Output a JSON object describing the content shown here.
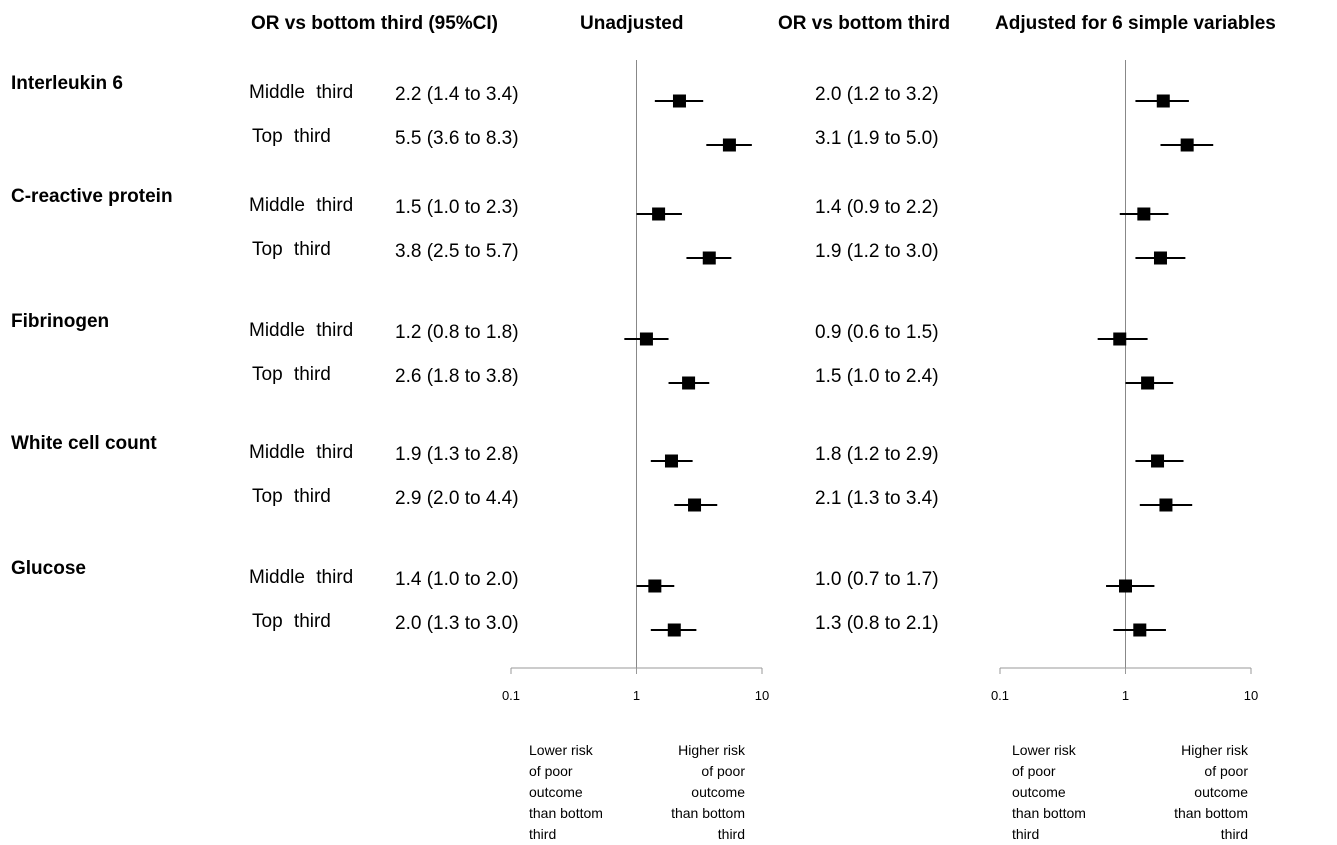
{
  "headers": {
    "or_unadjusted": "OR vs bottom third (95%CI)",
    "unadjusted": "Unadjusted",
    "or_adjusted": "OR vs bottom third",
    "adjusted": "Adjusted for 6 simple variables"
  },
  "axis_notes": {
    "lower": "Lower risk\nof poor\noutcome\nthan bottom\nthird",
    "higher": "Higher risk\nof poor\noutcome\nthan bottom\nthird"
  },
  "colors": {
    "marker": "#000000",
    "line": "#000000",
    "axis": "#999999",
    "reference": "#888888"
  },
  "chart_data": [
    {
      "type": "scatter",
      "title": "Unadjusted",
      "scale": "log",
      "xlim": [
        0.1,
        10
      ],
      "x_ticks": [
        "0.1",
        "1",
        "10"
      ],
      "reference_line": 1,
      "grid": false,
      "groups": [
        {
          "marker": "Interleukin 6",
          "rows": [
            {
              "level": "Middle third",
              "or": 2.2,
              "lo": 1.4,
              "hi": 3.4,
              "label": "2.2 (1.4 to 3.4)"
            },
            {
              "level": "Top third",
              "or": 5.5,
              "lo": 3.6,
              "hi": 8.3,
              "label": "5.5 (3.6 to 8.3)"
            }
          ]
        },
        {
          "marker": "C-reactive protein",
          "rows": [
            {
              "level": "Middle third",
              "or": 1.5,
              "lo": 1.0,
              "hi": 2.3,
              "label": "1.5 (1.0 to 2.3)"
            },
            {
              "level": "Top third",
              "or": 3.8,
              "lo": 2.5,
              "hi": 5.7,
              "label": "3.8 (2.5 to 5.7)"
            }
          ]
        },
        {
          "marker": "Fibrinogen",
          "rows": [
            {
              "level": "Middle third",
              "or": 1.2,
              "lo": 0.8,
              "hi": 1.8,
              "label": "1.2 (0.8 to 1.8)"
            },
            {
              "level": "Top third",
              "or": 2.6,
              "lo": 1.8,
              "hi": 3.8,
              "label": "2.6 (1.8 to 3.8)"
            }
          ]
        },
        {
          "marker": "White cell count",
          "rows": [
            {
              "level": "Middle third",
              "or": 1.9,
              "lo": 1.3,
              "hi": 2.8,
              "label": "1.9 (1.3 to 2.8)"
            },
            {
              "level": "Top third",
              "or": 2.9,
              "lo": 2.0,
              "hi": 4.4,
              "label": "2.9 (2.0 to 4.4)"
            }
          ]
        },
        {
          "marker": "Glucose",
          "rows": [
            {
              "level": "Middle third",
              "or": 1.4,
              "lo": 1.0,
              "hi": 2.0,
              "label": "1.4 (1.0 to 2.0)"
            },
            {
              "level": "Top third",
              "or": 2.0,
              "lo": 1.3,
              "hi": 3.0,
              "label": "2.0 (1.3 to 3.0)"
            }
          ]
        }
      ]
    },
    {
      "type": "scatter",
      "title": "Adjusted for 6 simple variables",
      "scale": "log",
      "xlim": [
        0.1,
        10
      ],
      "x_ticks": [
        "0.1",
        "1",
        "10"
      ],
      "reference_line": 1,
      "grid": false,
      "groups": [
        {
          "marker": "Interleukin 6",
          "rows": [
            {
              "level": "Middle third",
              "or": 2.0,
              "lo": 1.2,
              "hi": 3.2,
              "label": "2.0 (1.2  to 3.2)"
            },
            {
              "level": "Top third",
              "or": 3.1,
              "lo": 1.9,
              "hi": 5.0,
              "label": "3.1 (1.9 to 5.0)"
            }
          ]
        },
        {
          "marker": "C-reactive protein",
          "rows": [
            {
              "level": "Middle third",
              "or": 1.4,
              "lo": 0.9,
              "hi": 2.2,
              "label": "1.4 (0.9 to 2.2)"
            },
            {
              "level": "Top third",
              "or": 1.9,
              "lo": 1.2,
              "hi": 3.0,
              "label": "1.9 (1.2 to 3.0)"
            }
          ]
        },
        {
          "marker": "Fibrinogen",
          "rows": [
            {
              "level": "Middle third",
              "or": 0.9,
              "lo": 0.6,
              "hi": 1.5,
              "label": "0.9 (0.6 to 1.5)"
            },
            {
              "level": "Top third",
              "or": 1.5,
              "lo": 1.0,
              "hi": 2.4,
              "label": "1.5 (1.0 to 2.4)"
            }
          ]
        },
        {
          "marker": "White cell count",
          "rows": [
            {
              "level": "Middle third",
              "or": 1.8,
              "lo": 1.2,
              "hi": 2.9,
              "label": "1.8 (1.2 to 2.9)"
            },
            {
              "level": "Top third",
              "or": 2.1,
              "lo": 1.3,
              "hi": 3.4,
              "label": "2.1 (1.3 to 3.4)"
            }
          ]
        },
        {
          "marker": "Glucose",
          "rows": [
            {
              "level": "Middle third",
              "or": 1.0,
              "lo": 0.7,
              "hi": 1.7,
              "label": "1.0 (0.7 to 1.7)"
            },
            {
              "level": "Top third",
              "or": 1.3,
              "lo": 0.8,
              "hi": 2.1,
              "label": "1.3 (0.8 to 2.1)"
            }
          ]
        }
      ]
    }
  ]
}
